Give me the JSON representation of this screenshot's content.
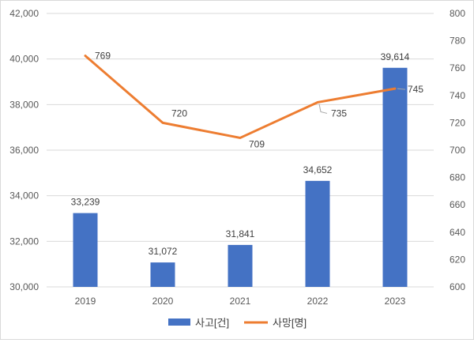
{
  "chart_data": {
    "type": "bar+line",
    "categories": [
      "2019",
      "2020",
      "2021",
      "2022",
      "2023"
    ],
    "series": [
      {
        "name": "사고[건]",
        "type": "bar",
        "axis": "left",
        "color": "#4472c4",
        "values": [
          33239,
          31072,
          31841,
          34652,
          39614
        ],
        "labels": [
          "33,239",
          "31,072",
          "31,841",
          "34,652",
          "39,614"
        ]
      },
      {
        "name": "사망[명]",
        "type": "line",
        "axis": "right",
        "color": "#ed7d31",
        "values": [
          769,
          720,
          709,
          735,
          745
        ],
        "labels": [
          "769",
          "720",
          "709",
          "735",
          "745"
        ]
      }
    ],
    "y_left": {
      "min": 30000,
      "max": 42000,
      "step": 2000,
      "ticks": [
        "30,000",
        "32,000",
        "34,000",
        "36,000",
        "38,000",
        "40,000",
        "42,000"
      ]
    },
    "y_right": {
      "min": 600,
      "max": 800,
      "step": 20,
      "ticks": [
        "600",
        "620",
        "640",
        "660",
        "680",
        "700",
        "720",
        "740",
        "760",
        "780",
        "800"
      ]
    },
    "grid": true,
    "legend_position": "bottom",
    "title": "",
    "xlabel": "",
    "ylabel": ""
  }
}
